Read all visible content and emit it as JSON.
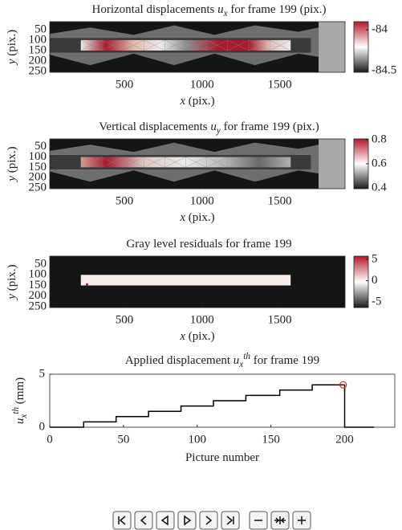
{
  "chart_data": [
    {
      "type": "image",
      "title": [
        "Horizontal displacements ",
        "u",
        "x",
        " for frame 199 (pix.)"
      ],
      "title_format": [
        "normal",
        "italic",
        "sub",
        "normal"
      ],
      "xlabel": [
        "x",
        " (pix.)"
      ],
      "xlabel_format": [
        "italic",
        "normal"
      ],
      "ylabel": [
        "y",
        " (pix.)"
      ],
      "ylabel_format": [
        "italic",
        "normal"
      ],
      "xlim": [
        20,
        1920
      ],
      "ylim": [
        12,
        254
      ],
      "y_reversed": true,
      "xticks": [
        500,
        1000,
        1500
      ],
      "yticks": [
        50,
        100,
        150,
        200,
        250
      ],
      "colormap": [
        "#1a1a1a",
        "#ffffff",
        "#b2182b"
      ],
      "colorbar": {
        "lim": [
          -84.52,
          -83.9
        ],
        "ticks": [
          -84.5,
          -84
        ]
      }
    },
    {
      "type": "image",
      "title": [
        "Vertical displacements ",
        "u",
        "y",
        " for frame 199 (pix.)"
      ],
      "title_format": [
        "normal",
        "italic",
        "sub",
        "normal"
      ],
      "xlabel": [
        "x",
        " (pix.)"
      ],
      "xlabel_format": [
        "italic",
        "normal"
      ],
      "ylabel": [
        "y",
        " (pix.)"
      ],
      "ylabel_format": [
        "italic",
        "normal"
      ],
      "xlim": [
        20,
        1920
      ],
      "ylim": [
        12,
        254
      ],
      "y_reversed": true,
      "xticks": [
        500,
        1000,
        1500
      ],
      "yticks": [
        50,
        100,
        150,
        200,
        250
      ],
      "colormap": [
        "#1a1a1a",
        "#ffffff",
        "#b2182b"
      ],
      "colorbar": {
        "lim": [
          0.393,
          0.806
        ],
        "ticks": [
          0.4,
          0.6,
          0.8
        ]
      }
    },
    {
      "type": "image",
      "title": [
        "Gray level residuals for frame 199"
      ],
      "title_format": [
        "normal"
      ],
      "xlabel": [
        "x",
        " (pix.)"
      ],
      "xlabel_format": [
        "italic",
        "normal"
      ],
      "ylabel": [
        "y",
        " (pix.)"
      ],
      "ylabel_format": [
        "italic",
        "normal"
      ],
      "xlim": [
        20,
        1920
      ],
      "ylim": [
        12,
        254
      ],
      "y_reversed": true,
      "xticks": [
        500,
        1000,
        1500
      ],
      "yticks": [
        50,
        100,
        150,
        200,
        250
      ],
      "colormap": [
        "#1a1a1a",
        "#ffffff",
        "#b2182b"
      ],
      "colorbar": {
        "lim": [
          -6.3,
          5.75
        ],
        "ticks": [
          -5,
          0,
          5
        ]
      }
    },
    {
      "type": "line",
      "title": [
        "Applied displacement ",
        "u",
        "x",
        "th",
        " for frame 199"
      ],
      "title_format": [
        "normal",
        "italic",
        "sub",
        "sup",
        "normal"
      ],
      "xlabel": [
        "Picture number"
      ],
      "xlabel_format": [
        "normal"
      ],
      "ylabel": [
        "u",
        "x",
        "th",
        " (mm)"
      ],
      "ylabel_format": [
        "italic",
        "sub",
        "sup",
        "normal"
      ],
      "xlim": [
        0,
        234
      ],
      "ylim": [
        0,
        5
      ],
      "xticks": [
        0,
        50,
        100,
        150,
        200
      ],
      "yticks": [
        0,
        5
      ],
      "x": [
        0,
        23,
        23,
        45,
        45,
        67,
        67,
        89,
        89,
        111,
        111,
        133,
        133,
        156,
        156,
        178,
        178,
        200,
        200,
        220
      ],
      "values": [
        0,
        0,
        0.5,
        0.5,
        1,
        1,
        1.5,
        1.5,
        2,
        2,
        2.5,
        2.5,
        3,
        3,
        3.5,
        3.5,
        4,
        4,
        0,
        0
      ],
      "color": "#000000",
      "marker": {
        "x": 199,
        "value": 4,
        "color": "#d62728"
      }
    }
  ]
}
